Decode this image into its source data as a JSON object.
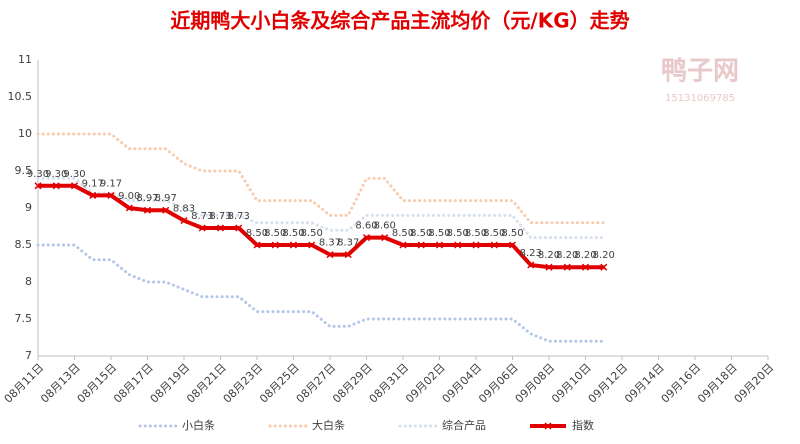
{
  "chart_data": {
    "type": "line",
    "title": "近期鸭大小白条及综合产品主流均价（元/KG）走势",
    "watermark": "鸭子网",
    "watermark_phone": "15131069785",
    "categories": [
      "08月11日",
      null,
      "08月13日",
      null,
      "08月15日",
      null,
      "08月17日",
      null,
      "08月19日",
      null,
      "08月21日",
      null,
      "08月23日",
      null,
      "08月25日",
      null,
      "08月27日",
      null,
      "08月29日",
      null,
      "08月31日",
      null,
      "09月02日",
      null,
      "09月04日",
      null,
      "09月06日",
      null,
      "09月08日",
      null,
      "09月10日",
      null,
      "09月12日",
      null,
      "09月14日",
      null,
      "09月16日",
      null,
      "09月18日",
      null,
      "09月20日"
    ],
    "series": [
      {
        "name": "小白条",
        "color": "#b4c7e7",
        "dash": true,
        "values": [
          8.5,
          8.5,
          8.5,
          8.3,
          8.3,
          8.1,
          8.0,
          8.0,
          7.9,
          7.8,
          7.8,
          7.8,
          7.6,
          7.6,
          7.6,
          7.6,
          7.4,
          7.4,
          7.5,
          7.5,
          7.5,
          7.5,
          7.5,
          7.5,
          7.5,
          7.5,
          7.5,
          7.3,
          7.2,
          7.2,
          7.2,
          7.2,
          null,
          null,
          null,
          null,
          null,
          null,
          null,
          null,
          null
        ]
      },
      {
        "name": "大白条",
        "color": "#f8cbad",
        "dash": true,
        "values": [
          10.0,
          10.0,
          10.0,
          10.0,
          10.0,
          9.8,
          9.8,
          9.8,
          9.6,
          9.5,
          9.5,
          9.5,
          9.1,
          9.1,
          9.1,
          9.1,
          8.9,
          8.9,
          9.4,
          9.4,
          9.1,
          9.1,
          9.1,
          9.1,
          9.1,
          9.1,
          9.1,
          8.8,
          8.8,
          8.8,
          8.8,
          8.8,
          null,
          null,
          null,
          null,
          null,
          null,
          null,
          null,
          null
        ]
      },
      {
        "name": "综合产品",
        "color": "#d6dfee",
        "dash": true,
        "values": [
          9.4,
          9.4,
          9.4,
          9.2,
          9.2,
          9.1,
          9.1,
          9.1,
          9.0,
          8.9,
          8.9,
          8.9,
          8.8,
          8.8,
          8.8,
          8.8,
          8.7,
          8.7,
          8.9,
          8.9,
          8.9,
          8.9,
          8.9,
          8.9,
          8.9,
          8.9,
          8.9,
          8.6,
          8.6,
          8.6,
          8.6,
          8.6,
          null,
          null,
          null,
          null,
          null,
          null,
          null,
          null,
          null
        ]
      },
      {
        "name": "指数",
        "color": "#e00000",
        "dash": false,
        "values": [
          9.3,
          9.3,
          9.3,
          9.17,
          9.17,
          9.0,
          8.97,
          8.97,
          8.83,
          8.73,
          8.73,
          8.73,
          8.5,
          8.5,
          8.5,
          8.5,
          8.37,
          8.37,
          8.6,
          8.6,
          8.5,
          8.5,
          8.5,
          8.5,
          8.5,
          8.5,
          8.5,
          8.23,
          8.2,
          8.2,
          8.2,
          8.2,
          null,
          null,
          null,
          null,
          null,
          null,
          null,
          null,
          null
        ],
        "value_labels": [
          "9.30",
          "9.30",
          "9.30",
          "9.17",
          "9.17",
          "9.00",
          "8.97",
          "8.97",
          "8.83",
          "8.73",
          "8.73",
          "8.73",
          "8.50",
          "8.50",
          "8.50",
          "8.50",
          "8.37",
          "8.37",
          "8.60",
          "8.60",
          "8.50",
          "8.50",
          "8.50",
          "8.50",
          "8.50",
          "8.50",
          "8.50",
          "8.23",
          "8.20",
          "8.20",
          "8.20",
          "8.20",
          null,
          null,
          null,
          null,
          null,
          null,
          null,
          null,
          null
        ]
      }
    ],
    "ylim": [
      7,
      11
    ],
    "yticks": [
      7,
      7.5,
      8,
      8.5,
      9,
      9.5,
      10,
      10.5,
      11
    ],
    "grid": false,
    "legend": "bottom"
  }
}
